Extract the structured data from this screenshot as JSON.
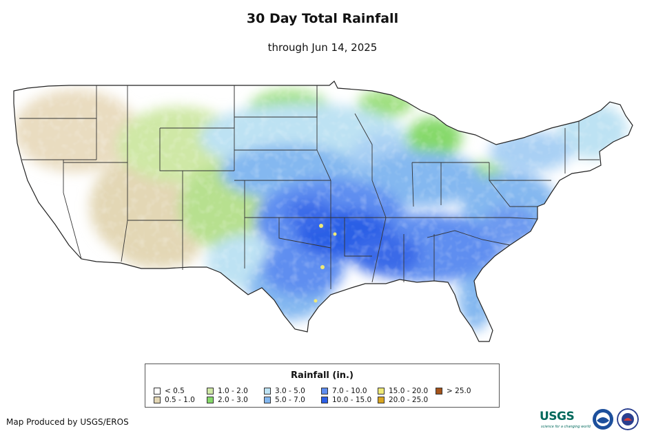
{
  "title": "30 Day Total Rainfall",
  "subtitle": "through Jun 14, 2025",
  "legend": {
    "title": "Rainfall (in.)",
    "items": [
      {
        "label": "< 0.5",
        "color": "#ffffff"
      },
      {
        "label": "0.5 - 1.0",
        "color": "#e3d7b5"
      },
      {
        "label": "1.0 - 2.0",
        "color": "#cfe8a6"
      },
      {
        "label": "2.0 - 3.0",
        "color": "#86d96a"
      },
      {
        "label": "3.0 - 5.0",
        "color": "#bde2f3"
      },
      {
        "label": "5.0 - 7.0",
        "color": "#84b8f0"
      },
      {
        "label": "7.0 - 10.0",
        "color": "#5f8ef0"
      },
      {
        "label": "10.0 - 15.0",
        "color": "#2c5fe6"
      },
      {
        "label": "15.0 - 20.0",
        "color": "#eee977"
      },
      {
        "label": "20.0 - 25.0",
        "color": "#d9a521"
      },
      {
        "label": "> 25.0",
        "color": "#a4531b"
      }
    ]
  },
  "credit": "Map Produced by USGS/EROS",
  "logos": {
    "usgs": "USGS",
    "usgs_tagline": "science for a changing world",
    "noaa": "noaa-seal-icon",
    "nws": "nws-seal-icon"
  }
}
